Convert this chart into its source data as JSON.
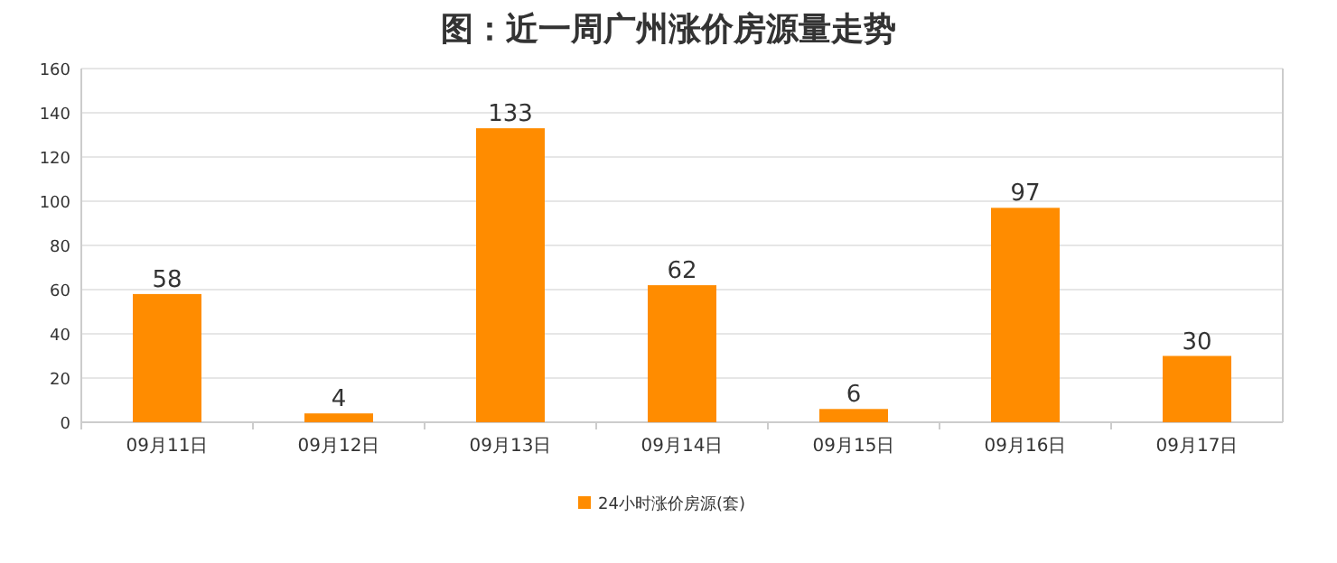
{
  "chart_data": {
    "type": "bar",
    "title": "图：近一周广州涨价房源量走势",
    "categories": [
      "09月11日",
      "09月12日",
      "09月13日",
      "09月14日",
      "09月15日",
      "09月16日",
      "09月17日"
    ],
    "series": [
      {
        "name": "24小时涨价房源(套)",
        "color": "#ff8c00",
        "values": [
          58,
          4,
          133,
          62,
          6,
          97,
          30
        ]
      }
    ],
    "ylim": [
      0,
      160
    ],
    "yticks": [
      0,
      20,
      40,
      60,
      80,
      100,
      120,
      140,
      160
    ],
    "grid": "y",
    "legend": "bottom",
    "data_labels": true
  }
}
